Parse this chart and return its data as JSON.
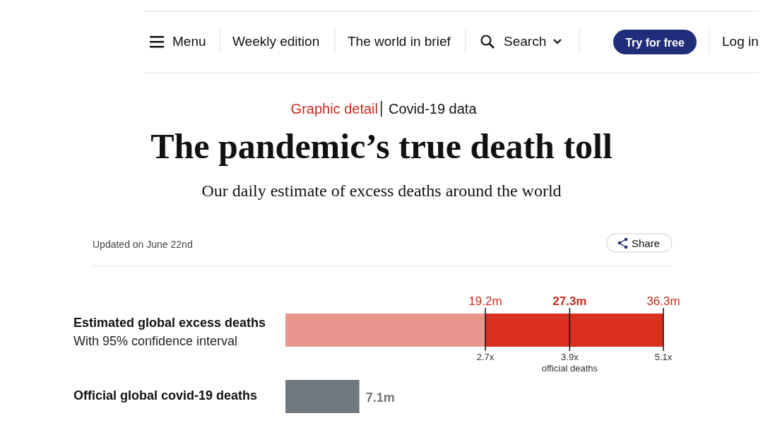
{
  "chart_data": {
    "type": "bar",
    "orientation": "horizontal",
    "stacked": true,
    "title": "The pandemic’s true death toll",
    "subtitle": "Our daily estimate of excess deaths around the world",
    "categories": [
      "Estimated global excess deaths",
      "Official global covid-19 deaths"
    ],
    "series": [
      {
        "color": "#e8978f",
        "values": [
          19.2,
          null
        ]
      },
      {
        "color": "#d93020",
        "values": [
          8.1,
          null
        ]
      },
      {
        "color": "#d93020",
        "values": [
          9.0,
          null
        ]
      },
      {
        "color": "#6f7880",
        "values": [
          null,
          7.1
        ],
        "value_labels": [
          null,
          "7.1m"
        ]
      }
    ],
    "xlim": [
      0,
      36.3
    ],
    "tick_labels": "y",
    "grid": false,
    "annotations": [
      "Menu",
      "Weekly edition",
      "The world in brief",
      "Search",
      "Try for free",
      "Log in",
      "Graphic detail",
      "Covid-19 data",
      "Updated on June 22nd",
      "Share",
      "With 95% confidence interval",
      "2.7x",
      "3.9x",
      "official deaths",
      "5.1x",
      {
        "text": "19.2m",
        "x": 19.2
      },
      {
        "text": "27.3m",
        "x": 27.3
      },
      {
        "text": "36.3m",
        "x": 36.3
      }
    ]
  }
}
